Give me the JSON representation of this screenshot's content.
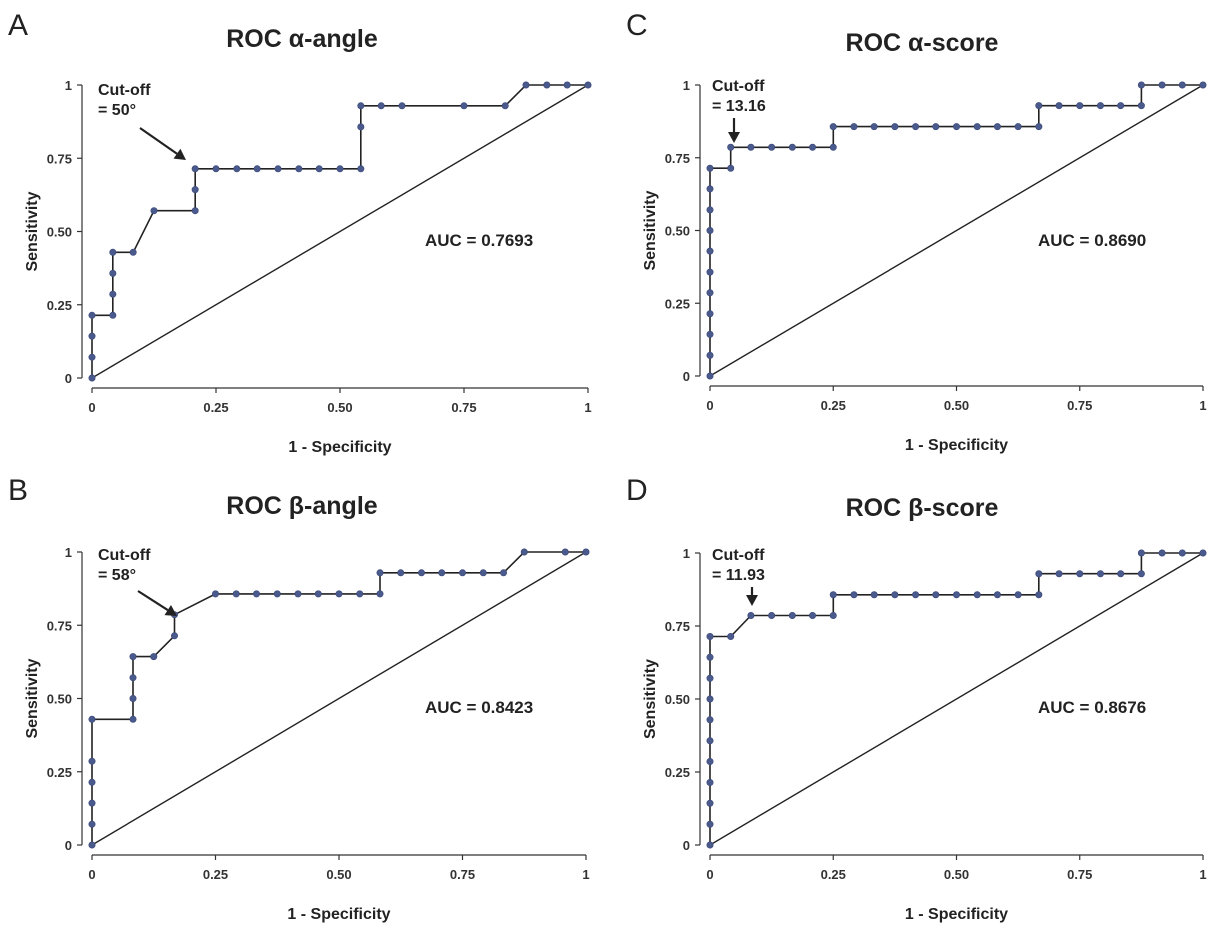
{
  "chart_data": [
    {
      "panel": "A",
      "type": "line",
      "title": "ROC α-angle",
      "xlabel": "1 - Specificity",
      "ylabel": "Sensitivity",
      "xlim": [
        0,
        1
      ],
      "ylim": [
        0,
        1
      ],
      "x_ticks": [
        "0",
        "0.25",
        "0.50",
        "0.75",
        "1"
      ],
      "y_ticks": [
        "0",
        "0.25",
        "0.50",
        "0.75",
        "1"
      ],
      "auc": "AUC = 0.7693",
      "cutoff_line1": "Cut-off",
      "cutoff_line2": "= 50°",
      "cutoff_point": [
        0.208,
        0.714
      ],
      "reference_line": [
        [
          0,
          0
        ],
        [
          1,
          1
        ]
      ],
      "series": [
        {
          "x": [
            0,
            0,
            0,
            0,
            0.042,
            0.042,
            0.042,
            0.042,
            0.083,
            0.125,
            0.208,
            0.208,
            0.208,
            0.25,
            0.292,
            0.333,
            0.375,
            0.417,
            0.458,
            0.5,
            0.542,
            0.542,
            0.542,
            0.583,
            0.625,
            0.75,
            0.833,
            0.875,
            0.917,
            0.958,
            1
          ],
          "y": [
            0,
            0.071,
            0.143,
            0.214,
            0.214,
            0.286,
            0.357,
            0.429,
            0.429,
            0.571,
            0.571,
            0.643,
            0.714,
            0.714,
            0.714,
            0.714,
            0.714,
            0.714,
            0.714,
            0.714,
            0.714,
            0.857,
            0.929,
            0.929,
            0.929,
            0.929,
            0.929,
            1,
            1,
            1,
            1
          ]
        }
      ]
    },
    {
      "panel": "B",
      "type": "line",
      "title": "ROC β-angle",
      "xlabel": "1 - Specificity",
      "ylabel": "Sensitivity",
      "xlim": [
        0,
        1
      ],
      "ylim": [
        0,
        1
      ],
      "x_ticks": [
        "0",
        "0.25",
        "0.50",
        "0.75",
        "1"
      ],
      "y_ticks": [
        "0",
        "0.25",
        "0.50",
        "0.75",
        "1"
      ],
      "auc": "AUC = 0.8423",
      "cutoff_line1": "Cut-off",
      "cutoff_line2": "= 58°",
      "cutoff_point": [
        0.167,
        0.786
      ],
      "reference_line": [
        [
          0,
          0
        ],
        [
          1,
          1
        ]
      ],
      "series": [
        {
          "x": [
            0,
            0,
            0,
            0,
            0,
            0,
            0.083,
            0.083,
            0.083,
            0.083,
            0.125,
            0.167,
            0.167,
            0.25,
            0.292,
            0.333,
            0.375,
            0.417,
            0.458,
            0.5,
            0.542,
            0.583,
            0.583,
            0.625,
            0.667,
            0.708,
            0.75,
            0.792,
            0.833,
            0.875,
            0.958,
            1
          ],
          "y": [
            0,
            0.071,
            0.143,
            0.214,
            0.286,
            0.429,
            0.429,
            0.5,
            0.571,
            0.643,
            0.643,
            0.714,
            0.786,
            0.857,
            0.857,
            0.857,
            0.857,
            0.857,
            0.857,
            0.857,
            0.857,
            0.857,
            0.929,
            0.929,
            0.929,
            0.929,
            0.929,
            0.929,
            0.929,
            1,
            1,
            1
          ]
        }
      ]
    },
    {
      "panel": "C",
      "type": "line",
      "title": "ROC α-score",
      "xlabel": "1 - Specificity",
      "ylabel": "Sensitivity",
      "xlim": [
        0,
        1
      ],
      "ylim": [
        0,
        1
      ],
      "x_ticks": [
        "0",
        "0.25",
        "0.50",
        "0.75",
        "1"
      ],
      "y_ticks": [
        "0",
        "0.25",
        "0.50",
        "0.75",
        "1"
      ],
      "auc": "AUC = 0.8690",
      "cutoff_line1": "Cut-off",
      "cutoff_line2": "= 13.16",
      "cutoff_point": [
        0.042,
        0.786
      ],
      "reference_line": [
        [
          0,
          0
        ],
        [
          1,
          1
        ]
      ],
      "series": [
        {
          "x": [
            0,
            0,
            0,
            0,
            0,
            0,
            0,
            0,
            0,
            0,
            0,
            0.042,
            0.042,
            0.083,
            0.125,
            0.167,
            0.208,
            0.25,
            0.25,
            0.292,
            0.333,
            0.375,
            0.417,
            0.458,
            0.5,
            0.542,
            0.583,
            0.625,
            0.667,
            0.667,
            0.708,
            0.75,
            0.792,
            0.833,
            0.875,
            0.875,
            0.917,
            0.958,
            1
          ],
          "y": [
            0,
            0.071,
            0.143,
            0.214,
            0.286,
            0.357,
            0.429,
            0.5,
            0.571,
            0.643,
            0.714,
            0.714,
            0.786,
            0.786,
            0.786,
            0.786,
            0.786,
            0.786,
            0.857,
            0.857,
            0.857,
            0.857,
            0.857,
            0.857,
            0.857,
            0.857,
            0.857,
            0.857,
            0.857,
            0.929,
            0.929,
            0.929,
            0.929,
            0.929,
            0.929,
            1,
            1,
            1,
            1
          ]
        }
      ]
    },
    {
      "panel": "D",
      "type": "line",
      "title": "ROC β-score",
      "xlabel": "1 - Specificity",
      "ylabel": "Sensitivity",
      "xlim": [
        0,
        1
      ],
      "ylim": [
        0,
        1
      ],
      "x_ticks": [
        "0",
        "0.25",
        "0.50",
        "0.75",
        "1"
      ],
      "y_ticks": [
        "0",
        "0.25",
        "0.50",
        "0.75",
        "1"
      ],
      "auc": "AUC = 0.8676",
      "cutoff_line1": "Cut-off",
      "cutoff_line2": "= 11.93",
      "cutoff_point": [
        0.083,
        0.786
      ],
      "reference_line": [
        [
          0,
          0
        ],
        [
          1,
          1
        ]
      ],
      "series": [
        {
          "x": [
            0,
            0,
            0,
            0,
            0,
            0,
            0,
            0,
            0,
            0,
            0,
            0.042,
            0.083,
            0.125,
            0.167,
            0.208,
            0.25,
            0.25,
            0.292,
            0.333,
            0.375,
            0.417,
            0.458,
            0.5,
            0.542,
            0.583,
            0.625,
            0.667,
            0.667,
            0.708,
            0.75,
            0.792,
            0.833,
            0.875,
            0.875,
            0.917,
            0.958,
            1
          ],
          "y": [
            0,
            0.071,
            0.143,
            0.214,
            0.286,
            0.357,
            0.429,
            0.5,
            0.571,
            0.643,
            0.714,
            0.714,
            0.786,
            0.786,
            0.786,
            0.786,
            0.786,
            0.857,
            0.857,
            0.857,
            0.857,
            0.857,
            0.857,
            0.857,
            0.857,
            0.857,
            0.857,
            0.857,
            0.929,
            0.929,
            0.929,
            0.929,
            0.929,
            0.929,
            1,
            1,
            1,
            1
          ]
        }
      ]
    }
  ],
  "colors": {
    "point": "#4a5a8c",
    "line": "#222222"
  }
}
